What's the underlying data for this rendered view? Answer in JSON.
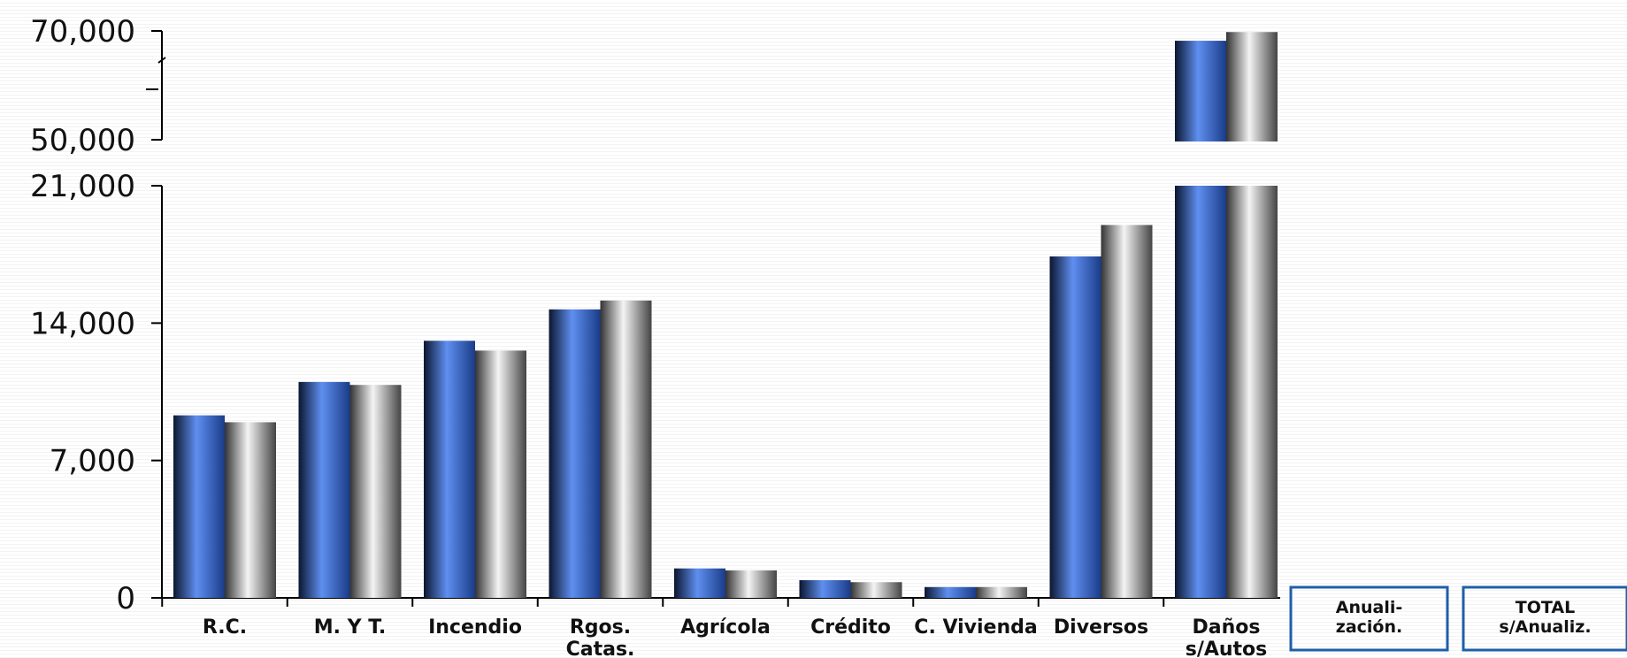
{
  "chart_data": {
    "type": "bar",
    "broken_axis": true,
    "y_ticks_lower": [
      "0",
      "7,000",
      "14,000",
      "21,000"
    ],
    "y_ticks_upper": [
      "50,000",
      "70,000"
    ],
    "ylim_lower": [
      0,
      21000
    ],
    "ylim_upper": [
      50000,
      70000
    ],
    "categories": [
      [
        "R.C."
      ],
      [
        "M. Y T."
      ],
      [
        "Incendio"
      ],
      [
        "Rgos.",
        "Catas."
      ],
      [
        "Agrícola"
      ],
      [
        "Crédito"
      ],
      [
        "C. Vivienda"
      ],
      [
        "Diversos"
      ],
      [
        "Daños",
        "s/Autos"
      ]
    ],
    "series": [
      {
        "values": [
          9300,
          11000,
          13100,
          14700,
          1500,
          900,
          550,
          17400,
          68200
        ],
        "color": "#3b6fd6"
      },
      {
        "values": [
          8950,
          10850,
          12600,
          15150,
          1400,
          800,
          550,
          19000,
          69800
        ],
        "color": "#b8b8b8"
      }
    ],
    "extra_boxes": [
      [
        "Anuali-",
        "zación."
      ],
      [
        "TOTAL",
        "s/Anualiz."
      ]
    ],
    "grid": false,
    "legend": "none"
  },
  "colors": {
    "box_border": "#1f5fa8",
    "axis": "#000000"
  }
}
